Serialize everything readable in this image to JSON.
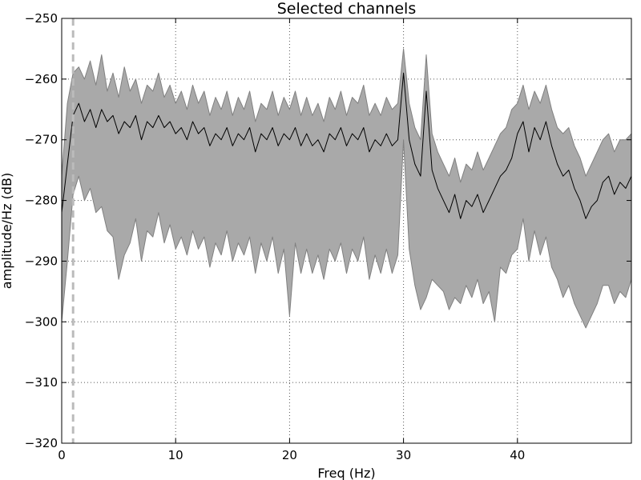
{
  "chart_data": {
    "type": "line",
    "title": "Selected channels",
    "xlabel": "Freq (Hz)",
    "ylabel": "amplitude/Hz (dB)",
    "xlim": [
      0,
      50
    ],
    "ylim": [
      -320,
      -250
    ],
    "xticks": [
      0,
      10,
      20,
      30,
      40
    ],
    "yticks": [
      -320,
      -310,
      -300,
      -290,
      -280,
      -270,
      -260,
      -250
    ],
    "xtick_labels": [
      "0",
      "10",
      "20",
      "30",
      "40"
    ],
    "ytick_labels": [
      "−320",
      "−310",
      "−300",
      "−290",
      "−280",
      "−270",
      "−260",
      "−250"
    ],
    "grid": true,
    "marker_line_x": 1.0,
    "colors": {
      "mean_line": "#000000",
      "band_fill": "#a9a9a9",
      "band_edge": "#808080",
      "marker_line": "#bbbbbb",
      "grid": "#555555"
    },
    "series": [
      {
        "x": [
          0,
          0.5,
          1,
          1.5,
          2,
          2.5,
          3,
          3.5,
          4,
          4.5,
          5,
          5.5,
          6,
          6.5,
          7,
          7.5,
          8,
          8.5,
          9,
          9.5,
          10,
          10.5,
          11,
          11.5,
          12,
          12.5,
          13,
          13.5,
          14,
          14.5,
          15,
          15.5,
          16,
          16.5,
          17,
          17.5,
          18,
          18.5,
          19,
          19.5,
          20,
          20.5,
          21,
          21.5,
          22,
          22.5,
          23,
          23.5,
          24,
          24.5,
          25,
          25.5,
          26,
          26.5,
          27,
          27.5,
          28,
          28.5,
          29,
          29.5,
          30,
          30.5,
          31,
          31.5,
          32,
          32.5,
          33,
          33.5,
          34,
          34.5,
          35,
          35.5,
          36,
          36.5,
          37,
          37.5,
          38,
          38.5,
          39,
          39.5,
          40,
          40.5,
          41,
          41.5,
          42,
          42.5,
          43,
          43.5,
          44,
          44.5,
          45,
          45.5,
          46,
          46.5,
          47,
          47.5,
          48,
          48.5,
          49,
          49.5,
          50
        ],
        "mean": [
          -282,
          -274,
          -266,
          -264,
          -267,
          -265,
          -268,
          -265,
          -267,
          -266,
          -269,
          -267,
          -268,
          -266,
          -270,
          -267,
          -268,
          -266,
          -268,
          -267,
          -269,
          -268,
          -270,
          -267,
          -269,
          -268,
          -271,
          -269,
          -270,
          -268,
          -271,
          -269,
          -270,
          -268,
          -272,
          -269,
          -270,
          -268,
          -271,
          -269,
          -270,
          -268,
          -271,
          -269,
          -271,
          -270,
          -272,
          -269,
          -270,
          -268,
          -271,
          -269,
          -270,
          -268,
          -272,
          -270,
          -271,
          -269,
          -271,
          -270,
          -259,
          -270,
          -274,
          -276,
          -262,
          -275,
          -278,
          -280,
          -282,
          -279,
          -283,
          -280,
          -281,
          -279,
          -282,
          -280,
          -278,
          -276,
          -275,
          -273,
          -269,
          -267,
          -272,
          -268,
          -270,
          -267,
          -271,
          -274,
          -276,
          -275,
          -278,
          -280,
          -283,
          -281,
          -280,
          -277,
          -276,
          -279,
          -277,
          -278,
          -276
        ],
        "upper": [
          -276,
          -264,
          -259,
          -258,
          -260,
          -257,
          -261,
          -256,
          -262,
          -259,
          -263,
          -258,
          -262,
          -260,
          -264,
          -261,
          -262,
          -259,
          -263,
          -261,
          -264,
          -262,
          -265,
          -261,
          -264,
          -262,
          -266,
          -263,
          -265,
          -262,
          -266,
          -263,
          -265,
          -262,
          -267,
          -264,
          -265,
          -262,
          -266,
          -263,
          -265,
          -262,
          -266,
          -263,
          -266,
          -264,
          -267,
          -263,
          -265,
          -262,
          -266,
          -263,
          -264,
          -261,
          -266,
          -264,
          -266,
          -263,
          -265,
          -264,
          -255,
          -264,
          -268,
          -270,
          -256,
          -269,
          -272,
          -274,
          -276,
          -273,
          -277,
          -274,
          -275,
          -272,
          -275,
          -273,
          -271,
          -269,
          -268,
          -265,
          -264,
          -261,
          -265,
          -262,
          -264,
          -261,
          -265,
          -268,
          -269,
          -268,
          -271,
          -273,
          -276,
          -274,
          -272,
          -270,
          -269,
          -272,
          -270,
          -270,
          -269
        ],
        "lower": [
          -300,
          -290,
          -279,
          -276,
          -280,
          -278,
          -282,
          -281,
          -285,
          -286,
          -293,
          -289,
          -287,
          -283,
          -290,
          -285,
          -286,
          -282,
          -287,
          -284,
          -288,
          -286,
          -289,
          -285,
          -288,
          -286,
          -291,
          -287,
          -289,
          -285,
          -290,
          -287,
          -289,
          -286,
          -292,
          -287,
          -290,
          -286,
          -292,
          -288,
          -299,
          -287,
          -292,
          -288,
          -292,
          -289,
          -293,
          -288,
          -290,
          -287,
          -292,
          -288,
          -290,
          -286,
          -293,
          -289,
          -292,
          -288,
          -292,
          -289,
          -270,
          -288,
          -294,
          -298,
          -296,
          -293,
          -294,
          -295,
          -298,
          -296,
          -297,
          -294,
          -296,
          -293,
          -297,
          -295,
          -300,
          -291,
          -292,
          -289,
          -288,
          -283,
          -290,
          -285,
          -289,
          -286,
          -291,
          -293,
          -296,
          -294,
          -297,
          -299,
          -301,
          -299,
          -297,
          -294,
          -294,
          -297,
          -295,
          -296,
          -293
        ]
      }
    ]
  }
}
